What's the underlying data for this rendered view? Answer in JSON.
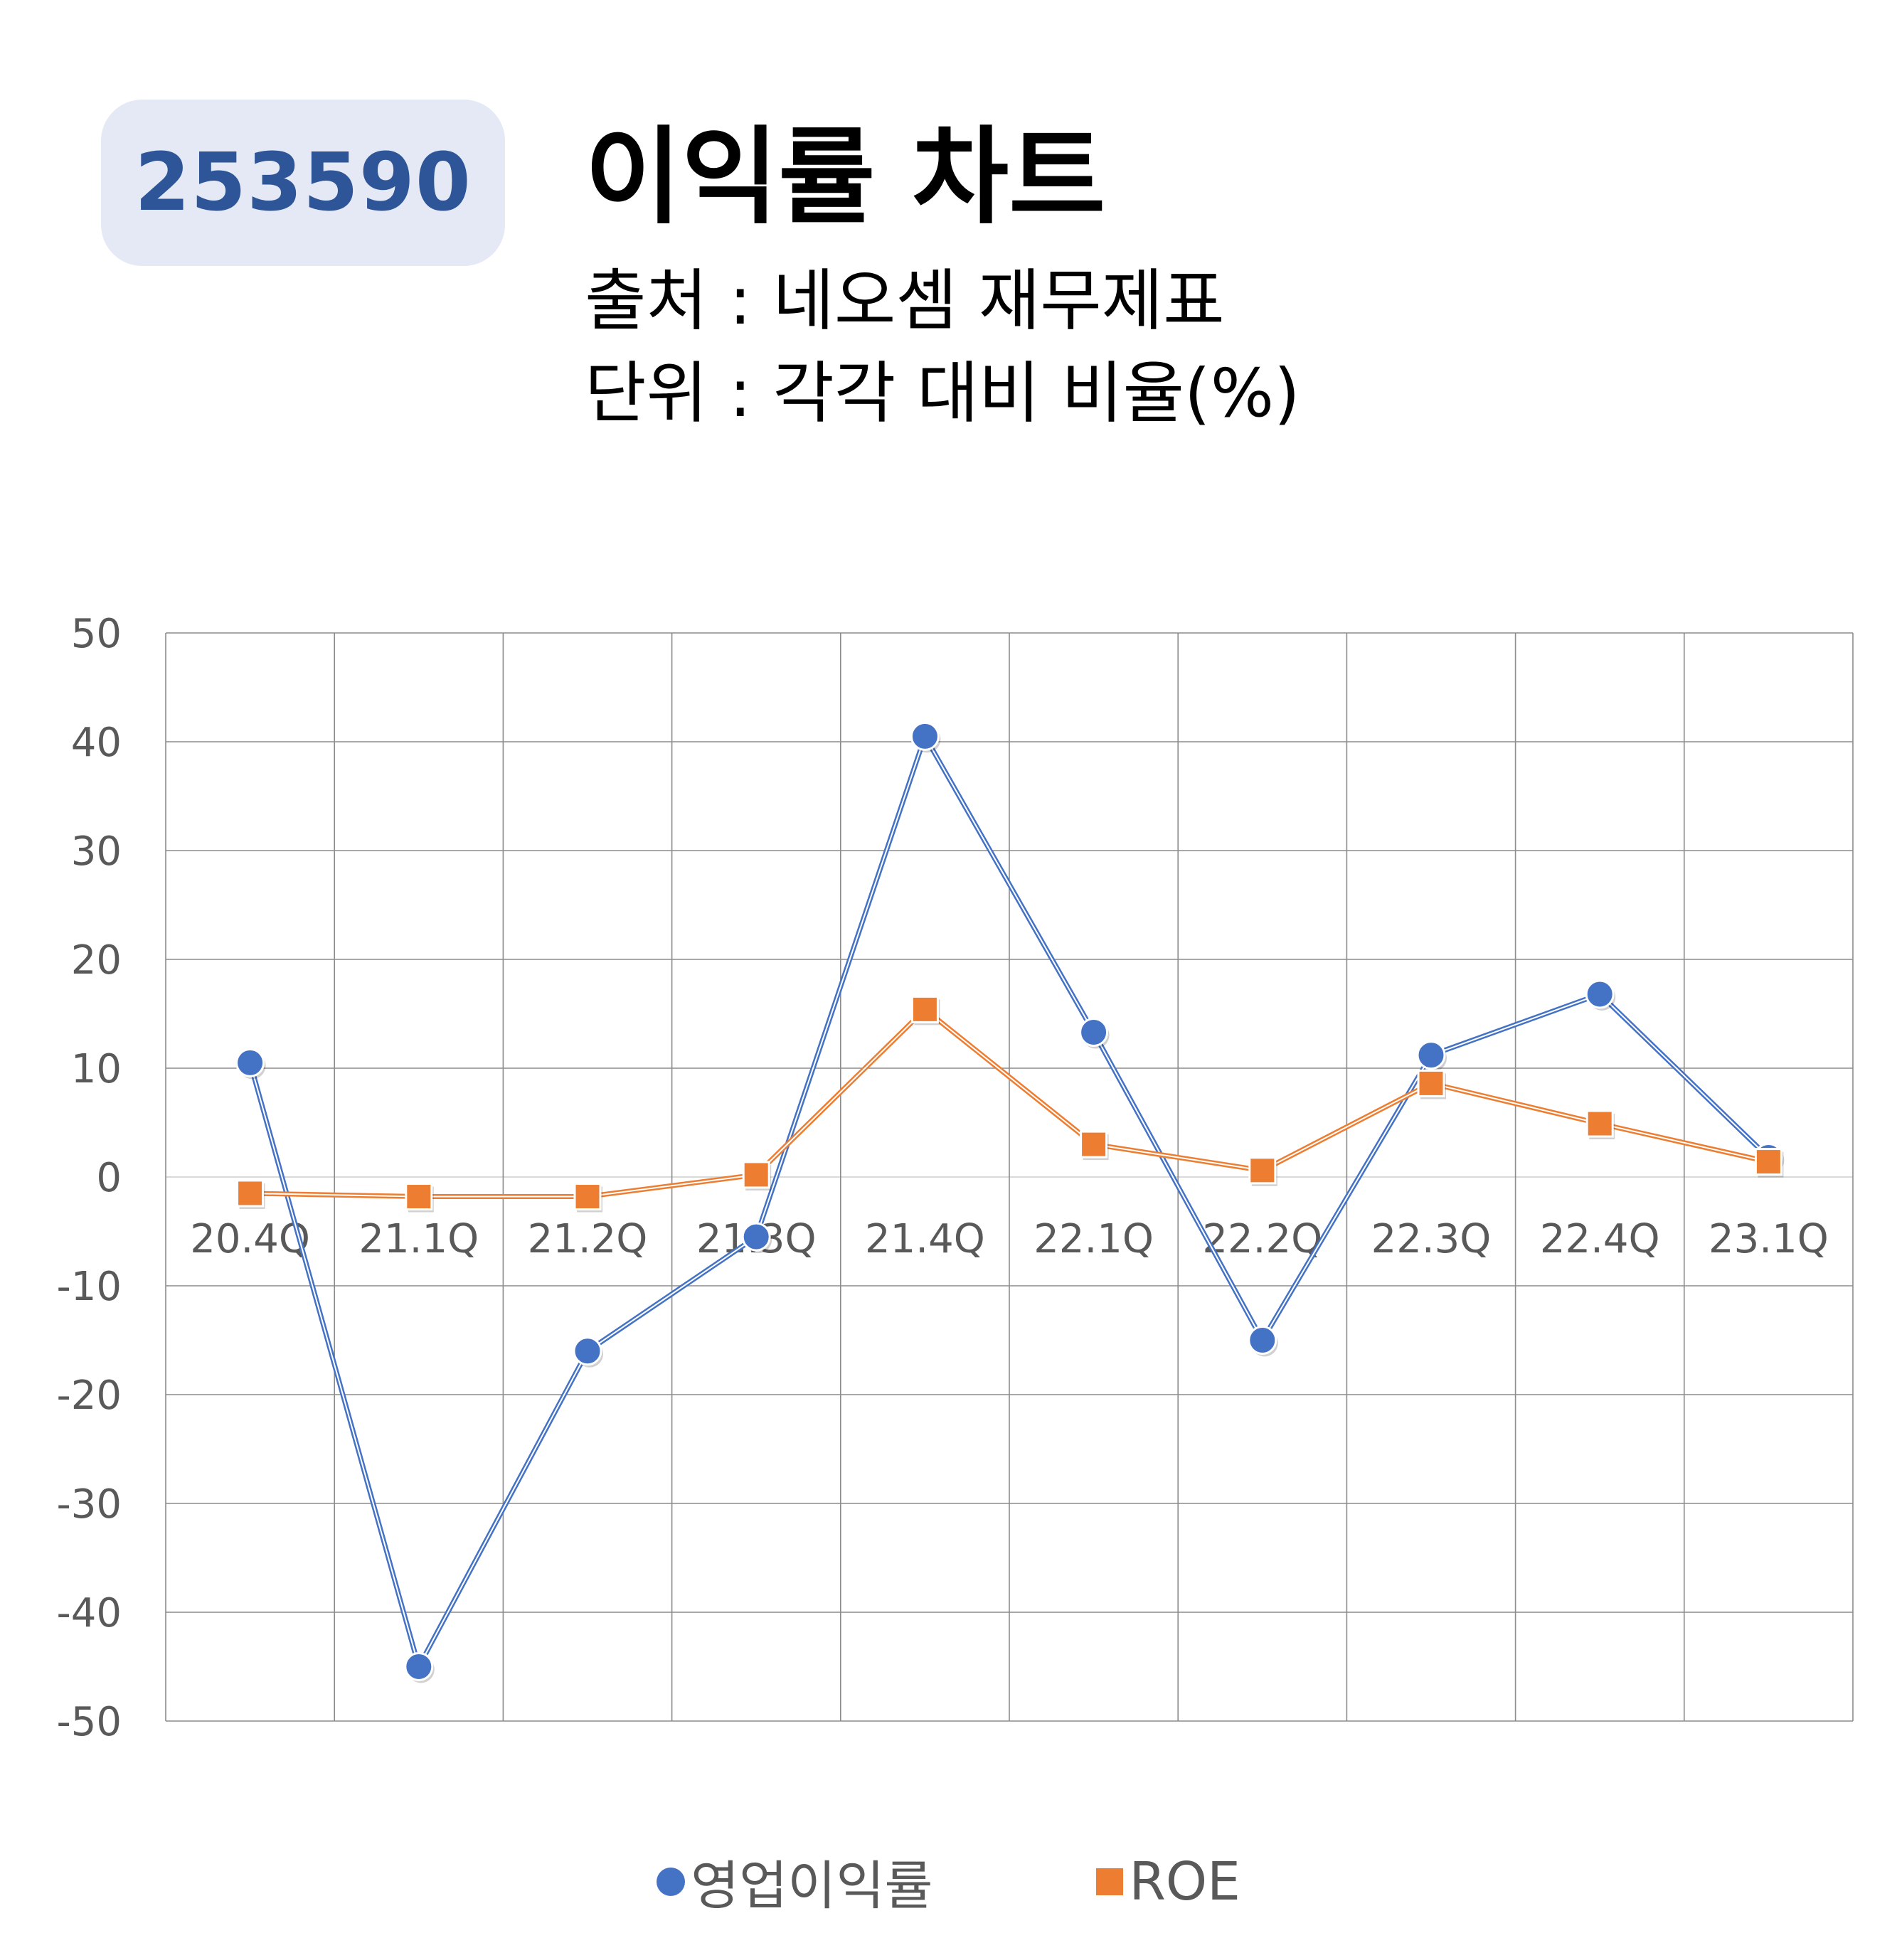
{
  "badge": {
    "code": "253590"
  },
  "header": {
    "title": "이익률 차트",
    "source": "출처 : 네오셈 재무제표",
    "unit": "단위 : 각각 대비 비율(%)"
  },
  "colors": {
    "series_1": "#4472c4",
    "series_2": "#ed7d31",
    "grid": "#8c8c8c",
    "zero_line": "#d9d9d9",
    "badge_bg": "#e4e9f5",
    "badge_text": "#2d5597"
  },
  "chart_data": {
    "type": "line",
    "title": "",
    "xlabel": "",
    "ylabel": "",
    "categories": [
      "20.4Q",
      "21.1Q",
      "21.2Q",
      "21.3Q",
      "21.4Q",
      "22.1Q",
      "22.2Q",
      "22.3Q",
      "22.4Q",
      "23.1Q"
    ],
    "ylim": [
      -50,
      50
    ],
    "yticks": [
      50,
      40,
      30,
      20,
      10,
      0,
      -10,
      -20,
      -30,
      -40,
      -50
    ],
    "grid": true,
    "legend": "bottom",
    "series": [
      {
        "name": "영업이익률",
        "marker": "circle",
        "values": [
          10.5,
          -45.0,
          -16.0,
          -5.5,
          40.5,
          13.3,
          -15.0,
          11.2,
          16.8,
          1.8
        ]
      },
      {
        "name": "ROE",
        "marker": "square",
        "values": [
          -1.5,
          -1.8,
          -1.8,
          0.2,
          15.4,
          3.0,
          0.6,
          8.6,
          4.9,
          1.4
        ]
      }
    ]
  }
}
